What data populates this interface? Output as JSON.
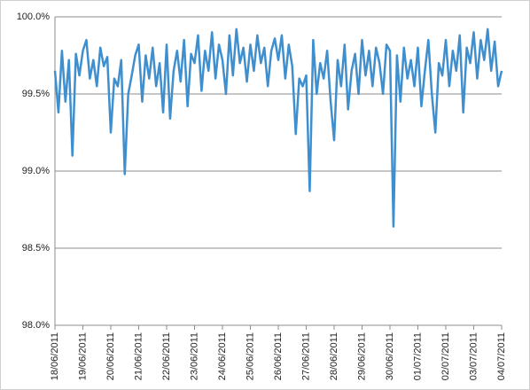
{
  "chart_data": {
    "type": "line",
    "categories": [
      "18/06/2011",
      null,
      null,
      null,
      null,
      null,
      null,
      null,
      "19/06/2011",
      null,
      null,
      null,
      null,
      null,
      null,
      null,
      "20/06/2011",
      null,
      null,
      null,
      null,
      null,
      null,
      null,
      "21/06/2011",
      null,
      null,
      null,
      null,
      null,
      null,
      null,
      "22/06/2011",
      null,
      null,
      null,
      null,
      null,
      null,
      null,
      "23/06/2011",
      null,
      null,
      null,
      null,
      null,
      null,
      null,
      "24/06/2011",
      null,
      null,
      null,
      null,
      null,
      null,
      null,
      "25/06/2011",
      null,
      null,
      null,
      null,
      null,
      null,
      null,
      "26/06/2011",
      null,
      null,
      null,
      null,
      null,
      null,
      null,
      "27/06/2011",
      null,
      null,
      null,
      null,
      null,
      null,
      null,
      "28/06/2011",
      null,
      null,
      null,
      null,
      null,
      null,
      null,
      "29/06/2011",
      null,
      null,
      null,
      null,
      null,
      null,
      null,
      "30/06/2011",
      null,
      null,
      null,
      null,
      null,
      null,
      null,
      "01/07/2011",
      null,
      null,
      null,
      null,
      null,
      null,
      null,
      "02/07/2011",
      null,
      null,
      null,
      null,
      null,
      null,
      null,
      "03/07/2011",
      null,
      null,
      null,
      null,
      null,
      null,
      null,
      "04/07/2011"
    ],
    "series": [
      {
        "name": null,
        "color": "#3f8fcf",
        "values": [
          99.65,
          99.38,
          99.78,
          99.45,
          99.72,
          99.1,
          99.76,
          99.62,
          99.78,
          99.85,
          99.6,
          99.72,
          99.55,
          99.8,
          99.68,
          99.74,
          99.25,
          99.6,
          99.55,
          99.72,
          98.98,
          99.5,
          99.62,
          99.75,
          99.82,
          99.45,
          99.75,
          99.6,
          99.8,
          99.55,
          99.7,
          99.38,
          99.82,
          99.34,
          99.65,
          99.78,
          99.58,
          99.85,
          99.42,
          99.76,
          99.7,
          99.88,
          99.52,
          99.78,
          99.65,
          99.9,
          99.6,
          99.82,
          99.72,
          99.5,
          99.88,
          99.62,
          99.92,
          99.7,
          99.8,
          99.58,
          99.82,
          99.65,
          99.88,
          99.7,
          99.8,
          99.55,
          99.78,
          99.86,
          99.72,
          99.88,
          99.6,
          99.82,
          99.68,
          99.24,
          99.6,
          99.55,
          99.62,
          98.87,
          99.85,
          99.5,
          99.7,
          99.6,
          99.78,
          99.45,
          99.2,
          99.72,
          99.55,
          99.82,
          99.4,
          99.65,
          99.76,
          99.5,
          99.85,
          99.62,
          99.78,
          99.55,
          99.8,
          99.7,
          99.5,
          99.82,
          99.78,
          98.64,
          99.75,
          99.45,
          99.8,
          99.6,
          99.72,
          99.55,
          99.8,
          99.42,
          99.65,
          99.85,
          99.5,
          99.25,
          99.7,
          99.62,
          99.85,
          99.55,
          99.78,
          99.65,
          99.88,
          99.38,
          99.8,
          99.7,
          99.9,
          99.6,
          99.85,
          99.72,
          99.92,
          99.65,
          99.84,
          99.55,
          99.65
        ]
      }
    ],
    "ylim": [
      98.0,
      100.0
    ],
    "yticks": [
      {
        "value": 98.0,
        "label": "98.0%"
      },
      {
        "value": 98.5,
        "label": "98.5%"
      },
      {
        "value": 99.0,
        "label": "99.0%"
      },
      {
        "value": 99.5,
        "label": "99.5%"
      },
      {
        "value": 100.0,
        "label": "100.0%"
      }
    ],
    "grid": true
  }
}
